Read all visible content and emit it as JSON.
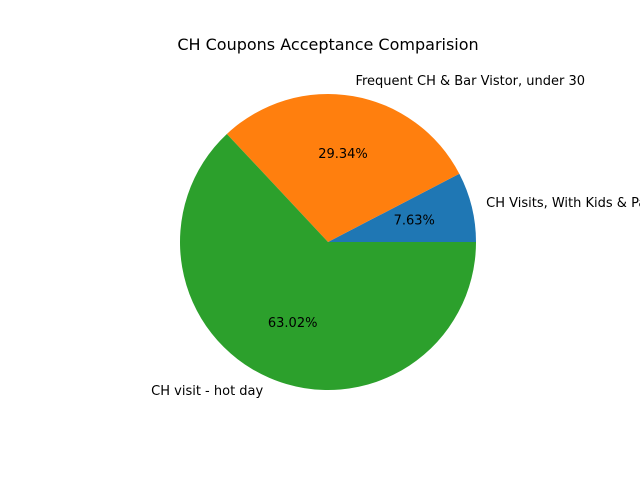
{
  "chart_data": {
    "type": "pie",
    "title": "CH Coupons Acceptance Comparision",
    "slices": [
      {
        "label": "CH Visits, With Kids & Partner",
        "percent": 7.63,
        "percent_label": "7.63%",
        "color": "#1f77b4"
      },
      {
        "label": "Frequent CH & Bar Vistor, under 30",
        "percent": 29.34,
        "percent_label": "29.34%",
        "color": "#ff7f0e"
      },
      {
        "label": "CH visit - hot day",
        "percent": 63.02,
        "percent_label": "63.02%",
        "color": "#2ca02c"
      }
    ],
    "start_angle_deg": 0,
    "direction": "counterclockwise",
    "legend": "none"
  }
}
